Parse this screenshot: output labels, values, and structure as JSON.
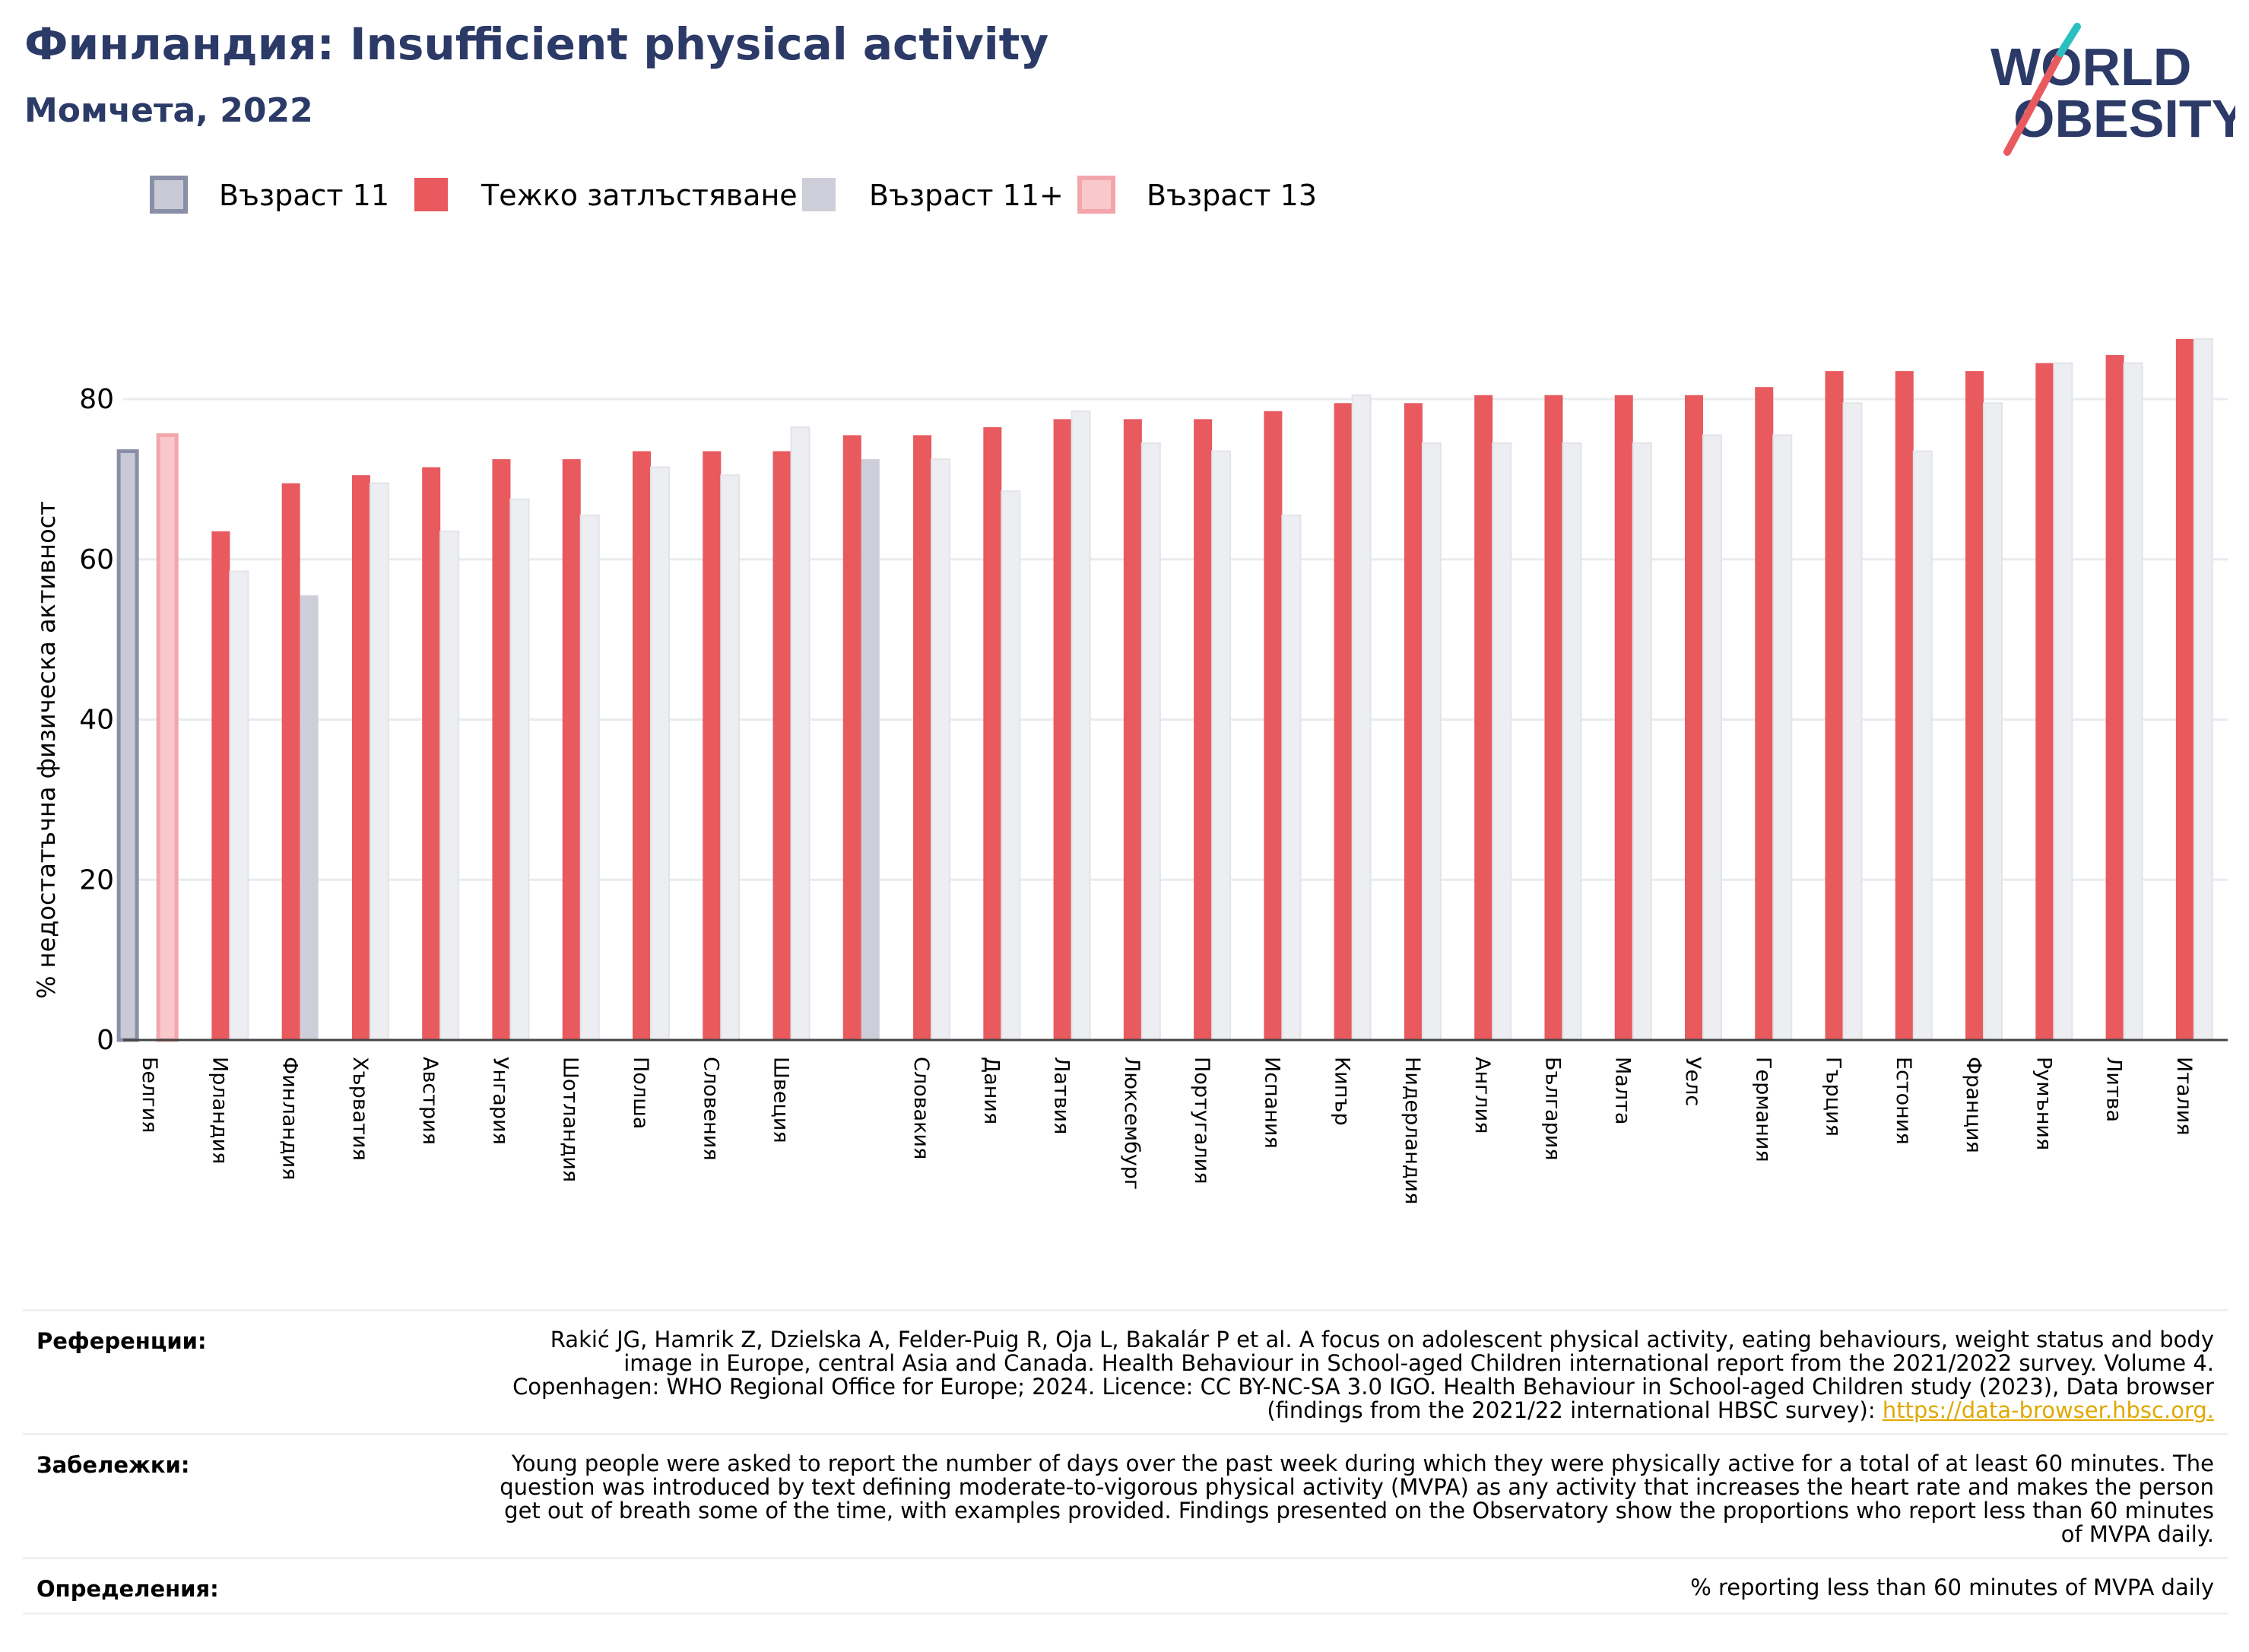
{
  "header": {
    "title": "Финландия: Insufficient physical activity",
    "subtitle": "Момчета, 2022"
  },
  "logo": {
    "line1": "WORLD",
    "line2": "OBESITY"
  },
  "colors": {
    "severe": "#e85a5e",
    "age11": "#c9cad6",
    "age11_border": "#8a8fa8",
    "age11plus": "#cdced9",
    "age13": "#f8c8cb",
    "age13_border": "#f2a6aa",
    "navy": "#2b3a67"
  },
  "chart_data": {
    "type": "bar",
    "ylabel": "% недостатъчна физическа активност",
    "ylim": [
      0,
      90
    ],
    "yticks": [
      0,
      20,
      40,
      60,
      80
    ],
    "legend": [
      {
        "name": "Възраст 11",
        "key": "age11"
      },
      {
        "name": "Тежко затлъстяване",
        "key": "severe"
      },
      {
        "name": "Възраст 11+",
        "key": "age11plus"
      },
      {
        "name": "Възраст 13",
        "key": "age13"
      }
    ],
    "categories": [
      "Белгия",
      "Ирландия",
      "Финландия",
      "Хърватия",
      "Австрия",
      "Унгария",
      "Шотландия",
      "Полша",
      "Словения",
      "Швеция",
      "",
      "Словакия",
      "Дания",
      "Латвия",
      "Люксембург",
      "Португалия",
      "Испания",
      "Кипър",
      "Нидерландия",
      "Англия",
      "България",
      "Малта",
      "Уелс",
      "Германия",
      "Гърция",
      "Естония",
      "Франция",
      "Румъния",
      "Литва",
      "Италия"
    ],
    "series": [
      {
        "name": "Тежко затлъстяване",
        "values": [
          null,
          63.5,
          69.5,
          70.5,
          71.5,
          72.5,
          72.5,
          73.5,
          73.5,
          73.5,
          75.5,
          75.5,
          76.5,
          77.5,
          77.5,
          77.5,
          78.5,
          79.5,
          79.5,
          80.5,
          80.5,
          80.5,
          80.5,
          81.5,
          83.5,
          83.5,
          83.5,
          84.5,
          85.5,
          87.5
        ]
      },
      {
        "name": "Възраст 11+",
        "values": [
          null,
          58.5,
          55.5,
          69.5,
          63.5,
          67.5,
          65.5,
          71.5,
          70.5,
          76.5,
          72.5,
          72.5,
          68.5,
          78.5,
          74.5,
          73.5,
          65.5,
          80.5,
          74.5,
          74.5,
          74.5,
          74.5,
          75.5,
          75.5,
          79.5,
          73.5,
          79.5,
          84.5,
          84.5,
          87.5
        ]
      },
      {
        "name": "Възраст 11",
        "values": [
          73.5,
          null,
          null,
          null,
          null,
          null,
          null,
          null,
          null,
          null,
          null,
          null,
          null,
          null,
          null,
          null,
          null,
          null,
          null,
          null,
          null,
          null,
          null,
          null,
          null,
          null,
          null,
          null,
          null,
          null
        ]
      },
      {
        "name": "Възраст 13",
        "values": [
          75.5,
          null,
          null,
          null,
          null,
          null,
          null,
          null,
          null,
          null,
          null,
          null,
          null,
          null,
          null,
          null,
          null,
          null,
          null,
          null,
          null,
          null,
          null,
          null,
          null,
          null,
          null,
          null,
          null,
          null
        ]
      }
    ],
    "highlight": [
      "Финландия",
      ""
    ]
  },
  "references": {
    "label": "Референции:",
    "text": "Rakić JG, Hamrik Z, Dzielska A, Felder-Puig R, Oja L, Bakalár P et al. A focus on adolescent physical activity, eating behaviours, weight status and body image in Europe, central Asia and Canada. Health Behaviour in School-aged Children international report from the 2021/2022 survey. Volume 4. Copenhagen: WHO Regional Office for Europe; 2024. Licence: CC BY-NC-SA 3.0 IGO. Health Behaviour in School-aged Children study (2023), Data browser (findings from the 2021/22 international HBSC survey): ",
    "link": "https://data-browser.hbsc.org."
  },
  "notes": {
    "label": "Забележки:",
    "text": "Young people were asked to report the number of days over the past week during which they were physically active for a total of at least 60 minutes. The question was introduced by text defining moderate-to-vigorous physical activity (MVPA) as any activity that increases the heart rate and makes the person get out of breath some of the time, with examples provided. Findings presented on the Observatory show the proportions who report less than 60 minutes of MVPA daily."
  },
  "definitions": {
    "label": "Определения:",
    "text": "% reporting less than 60 minutes of MVPA daily"
  }
}
